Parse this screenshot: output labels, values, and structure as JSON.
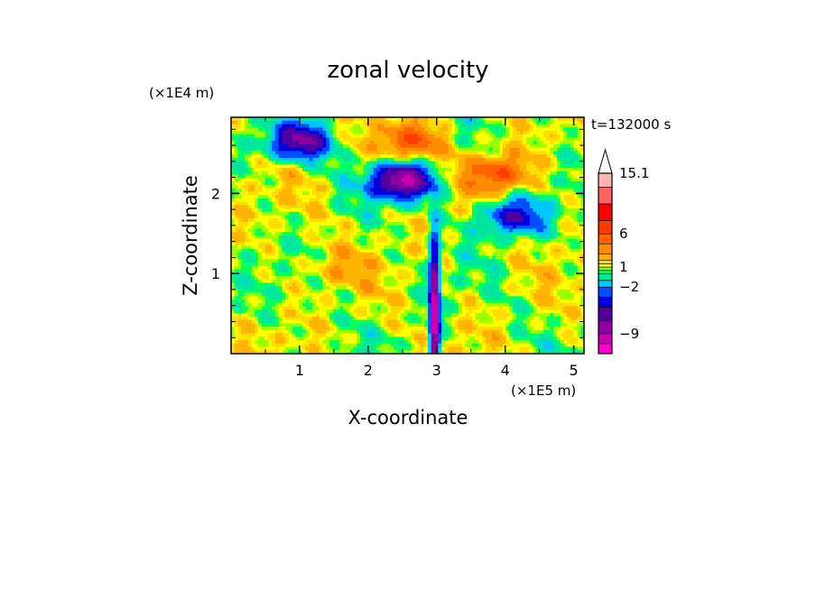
{
  "chart_data": {
    "type": "heatmap",
    "title": "zonal velocity",
    "xlabel": "X-coordinate",
    "ylabel": "Z-coordinate",
    "x_unit": "(×1E5 m)",
    "y_unit": "(×1E4 m)",
    "time_label": "t=132000 s",
    "xlim": [
      0,
      5.15
    ],
    "ylim": [
      0,
      2.95
    ],
    "x_ticks": [
      1,
      2,
      3,
      4,
      5
    ],
    "y_ticks": [
      1,
      2
    ],
    "colorbar": {
      "levels": [
        -12,
        -10.5,
        -9,
        -7,
        -5,
        -3.5,
        -2,
        -1,
        0,
        0.5,
        1,
        1.5,
        2,
        3,
        4.5,
        6,
        8,
        10.5,
        13,
        15.1
      ],
      "colors": [
        "#ff00c8",
        "#c800b4",
        "#8c00a0",
        "#5000a0",
        "#0000dc",
        "#0050ff",
        "#00c8ff",
        "#00e6a0",
        "#00ff64",
        "#96ff00",
        "#ffff00",
        "#ffdc00",
        "#ffb400",
        "#ff8c00",
        "#ff6400",
        "#ff3c00",
        "#ff0000",
        "#ff6464",
        "#ffb4b4"
      ],
      "labels": [
        "15.1",
        "6",
        "1",
        "−2",
        "−9"
      ],
      "label_values": [
        15.1,
        6,
        1,
        -2,
        -9
      ]
    },
    "features": [
      {
        "x": 2.5,
        "z": 2.15,
        "value": -10,
        "note": "strong westward jet, upper left-center"
      },
      {
        "x": 1.0,
        "z": 2.65,
        "value": -8
      },
      {
        "x": 2.6,
        "z": 2.65,
        "value": 5
      },
      {
        "x": 3.9,
        "z": 2.25,
        "value": 5
      },
      {
        "x": 4.1,
        "z": 1.7,
        "value": -6
      },
      {
        "x": 2.97,
        "z": 0.5,
        "value": -12,
        "note": "narrow vertical plume near x=3"
      },
      {
        "x": 1.5,
        "z": 1.05,
        "value": 1.5
      }
    ]
  }
}
